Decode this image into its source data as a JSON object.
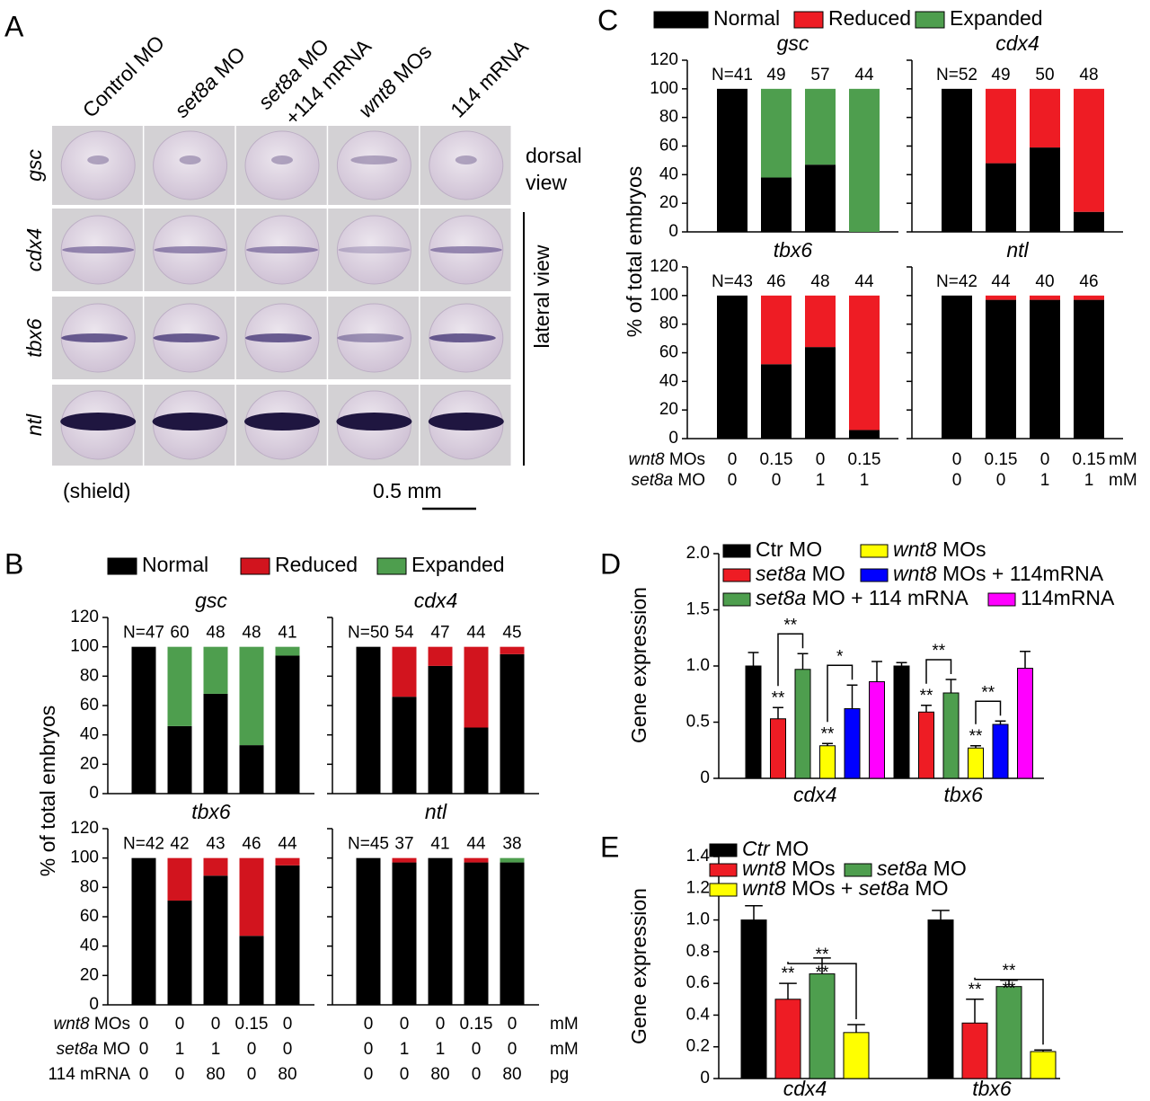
{
  "panel_a": {
    "label": "A",
    "columns": [
      [
        [
          {
            "text": "Control MO"
          }
        ]
      ],
      [
        [
          {
            "text": "set8a",
            "italic": true
          },
          {
            "text": " MO"
          }
        ]
      ],
      [
        [
          {
            "text": "set8a",
            "italic": true
          },
          {
            "text": " MO"
          }
        ],
        [
          {
            "text": "+114 mRNA"
          }
        ]
      ],
      [
        [
          {
            "text": "wnt8",
            "italic": true
          },
          {
            "text": " MOs"
          }
        ]
      ],
      [
        [
          {
            "text": "114 mRNA"
          }
        ]
      ]
    ],
    "rows": [
      "gsc",
      "cdx4",
      "tbx6",
      "ntl"
    ],
    "dorsal_view": [
      "dorsal",
      "view"
    ],
    "lateral_view": "lateral view",
    "stage": "(shield)",
    "scale": "0.5 mm"
  },
  "chart_data": [
    {
      "type": "stacked_bar",
      "label": "B",
      "ylabel": "% of total embryos",
      "ylim": [
        0,
        120
      ],
      "yticks": [
        0,
        20,
        40,
        60,
        80,
        100,
        120
      ],
      "series": [
        {
          "name": "Normal",
          "color": "#000000"
        },
        {
          "name": "Reduced",
          "color": "#d2141e"
        },
        {
          "name": "Expanded",
          "color": "#4e9e4e"
        }
      ],
      "subplots": [
        {
          "title": "gsc",
          "labels": [
            "N=47",
            "60",
            "48",
            "48",
            "41"
          ],
          "series": [
            {
              "values": [
                100,
                46,
                68,
                33,
                94
              ]
            },
            {
              "values": [
                0,
                0,
                0,
                0,
                0
              ]
            },
            {
              "values": [
                0,
                54,
                32,
                67,
                6
              ]
            }
          ]
        },
        {
          "title": "cdx4",
          "labels": [
            "N=50",
            "54",
            "47",
            "44",
            "45"
          ],
          "series": [
            {
              "values": [
                100,
                66,
                87,
                45,
                95
              ]
            },
            {
              "values": [
                0,
                34,
                13,
                55,
                5
              ]
            },
            {
              "values": [
                0,
                0,
                0,
                0,
                0
              ]
            }
          ]
        },
        {
          "title": "tbx6",
          "labels": [
            "N=42",
            "42",
            "43",
            "46",
            "44"
          ],
          "series": [
            {
              "values": [
                100,
                71,
                88,
                47,
                95
              ]
            },
            {
              "values": [
                0,
                29,
                12,
                53,
                5
              ]
            },
            {
              "values": [
                0,
                0,
                0,
                0,
                0
              ]
            }
          ]
        },
        {
          "title": "ntl",
          "labels": [
            "N=45",
            "37",
            "41",
            "44",
            "38"
          ],
          "series": [
            {
              "values": [
                100,
                97,
                100,
                97,
                97
              ]
            },
            {
              "values": [
                0,
                3,
                0,
                3,
                0
              ]
            },
            {
              "values": [
                0,
                0,
                0,
                0,
                3
              ]
            }
          ]
        }
      ],
      "conditions": [
        {
          "name": [
            {
              "text": "wnt8",
              "italic": true
            },
            {
              "text": " MOs"
            }
          ],
          "values": [
            0,
            0,
            0,
            0.15,
            0
          ],
          "unit": "mM"
        },
        {
          "name": [
            {
              "text": "set8a",
              "italic": true
            },
            {
              "text": " MO"
            }
          ],
          "values": [
            0,
            1,
            1,
            0,
            0
          ],
          "unit": "mM"
        },
        {
          "name": [
            {
              "text": "114 mRNA"
            }
          ],
          "values": [
            0,
            0,
            80,
            0,
            80
          ],
          "unit": "pg"
        }
      ]
    },
    {
      "type": "stacked_bar",
      "label": "C",
      "ylabel": "% of total embryos",
      "ylim": [
        0,
        120
      ],
      "yticks": [
        0,
        20,
        40,
        60,
        80,
        100,
        120
      ],
      "series": [
        {
          "name": "Normal",
          "color": "#000000"
        },
        {
          "name": "Reduced",
          "color": "#ee1c24"
        },
        {
          "name": "Expanded",
          "color": "#4e9e4e"
        }
      ],
      "subplots": [
        {
          "title": "gsc",
          "labels": [
            "N=41",
            "49",
            "57",
            "44"
          ],
          "series": [
            {
              "values": [
                100,
                38,
                47,
                0
              ]
            },
            {
              "values": [
                0,
                0,
                0,
                0
              ]
            },
            {
              "values": [
                0,
                62,
                53,
                100
              ]
            }
          ]
        },
        {
          "title": "cdx4",
          "labels": [
            "N=52",
            "49",
            "50",
            "48"
          ],
          "series": [
            {
              "values": [
                100,
                48,
                59,
                14
              ]
            },
            {
              "values": [
                0,
                52,
                41,
                86
              ]
            },
            {
              "values": [
                0,
                0,
                0,
                0
              ]
            }
          ]
        },
        {
          "title": "tbx6",
          "labels": [
            "N=43",
            "46",
            "48",
            "44"
          ],
          "series": [
            {
              "values": [
                100,
                52,
                64,
                6
              ]
            },
            {
              "values": [
                0,
                48,
                36,
                94
              ]
            },
            {
              "values": [
                0,
                0,
                0,
                0
              ]
            }
          ]
        },
        {
          "title": "ntl",
          "labels": [
            "N=42",
            "44",
            "40",
            "46"
          ],
          "series": [
            {
              "values": [
                100,
                97,
                97,
                97
              ]
            },
            {
              "values": [
                0,
                3,
                3,
                3
              ]
            },
            {
              "values": [
                0,
                0,
                0,
                0
              ]
            }
          ]
        }
      ],
      "conditions": [
        {
          "name": [
            {
              "text": "wnt8",
              "italic": true
            },
            {
              "text": " MOs"
            }
          ],
          "values": [
            0,
            0.15,
            0,
            0.15
          ],
          "unit": "mM"
        },
        {
          "name": [
            {
              "text": "set8a",
              "italic": true
            },
            {
              "text": " MO"
            }
          ],
          "values": [
            0,
            0,
            1,
            1
          ],
          "unit": "mM"
        }
      ]
    },
    {
      "type": "grouped_bar",
      "label": "D",
      "ylabel": "Gene expression",
      "categories": [
        "cdx4",
        "tbx6"
      ],
      "ylim": [
        0,
        2
      ],
      "yticks": [
        0,
        0.5,
        {
          "value": 1,
          "label": "1.0"
        },
        1.5,
        {
          "value": 2,
          "label": "2.0"
        }
      ],
      "series": [
        {
          "name": [
            {
              "text": "Ctr MO"
            }
          ],
          "color": "#000000",
          "values": [
            1.0,
            1.0
          ],
          "errors": [
            0.12,
            0.03
          ]
        },
        {
          "name": [
            {
              "text": "set8a",
              "italic": true
            },
            {
              "text": " MO"
            }
          ],
          "color": "#ee1c24",
          "values": [
            0.53,
            0.59
          ],
          "errors": [
            0.1,
            0.06
          ],
          "significance": [
            "**",
            "**"
          ]
        },
        {
          "name": [
            {
              "text": "set8a",
              "italic": true
            },
            {
              "text": " MO + 114 mRNA"
            }
          ],
          "color": "#4e9e4e",
          "values": [
            0.97,
            0.76
          ],
          "errors": [
            0.14,
            0.12
          ]
        },
        {
          "name": [
            {
              "text": "wnt8",
              "italic": true
            },
            {
              "text": " MOs"
            }
          ],
          "color": "#ffff00",
          "values": [
            0.29,
            0.27
          ],
          "errors": [
            0.02,
            0.02
          ],
          "significance": [
            "**",
            "**"
          ]
        },
        {
          "name": [
            {
              "text": "wnt8",
              "italic": true
            },
            {
              "text": " MOs + 114mRNA"
            }
          ],
          "color": "#0000ff",
          "values": [
            0.62,
            0.48
          ],
          "errors": [
            0.21,
            0.03
          ]
        },
        {
          "name": [
            {
              "text": "114mRNA"
            }
          ],
          "color": "#ff00ff",
          "values": [
            0.86,
            0.98
          ],
          "errors": [
            0.18,
            0.15
          ]
        }
      ],
      "brackets": [
        {
          "labels": [
            "**"
          ]
        },
        {
          "labels": [
            "*"
          ]
        },
        {
          "labels": [
            "**"
          ]
        },
        {
          "labels": [
            "**"
          ]
        }
      ]
    },
    {
      "type": "grouped_bar",
      "label": "E",
      "ylabel": "Gene expression",
      "categories": [
        "cdx4",
        "tbx6"
      ],
      "ylim": [
        0,
        1.4
      ],
      "yticks": [
        0,
        0.2,
        0.4,
        0.6,
        0.8,
        {
          "value": 1,
          "label": "1.0"
        },
        1.2,
        1.4
      ],
      "series": [
        {
          "name": [
            {
              "text": "Ctr",
              "italic": true
            },
            {
              "text": " MO"
            }
          ],
          "color": "#000000",
          "values": [
            1.0,
            1.0
          ],
          "errors": [
            0.09,
            0.06
          ]
        },
        {
          "name": [
            {
              "text": "wnt8",
              "italic": true
            },
            {
              "text": " MOs"
            }
          ],
          "color": "#ee1c24",
          "values": [
            0.5,
            0.35
          ],
          "errors": [
            0.1,
            0.15
          ],
          "significance": [
            "**",
            "**"
          ]
        },
        {
          "name": [
            {
              "text": "set8a",
              "italic": true
            },
            {
              "text": " MO"
            }
          ],
          "color": "#4e9e4e",
          "values": [
            0.66,
            0.58
          ],
          "errors": [
            0.1,
            0.04
          ]
        },
        {
          "name": [
            {
              "text": "wnt8",
              "italic": true
            },
            {
              "text": " MOs + "
            },
            {
              "text": "set8a",
              "italic": true
            },
            {
              "text": " MO"
            }
          ],
          "color": "#ffff00",
          "values": [
            0.29,
            0.17
          ],
          "errors": [
            0.05,
            0.01
          ]
        }
      ],
      "brackets": [
        {
          "labels": [
            "**",
            "**"
          ]
        },
        {
          "labels": [
            "**",
            "**"
          ]
        }
      ]
    }
  ]
}
